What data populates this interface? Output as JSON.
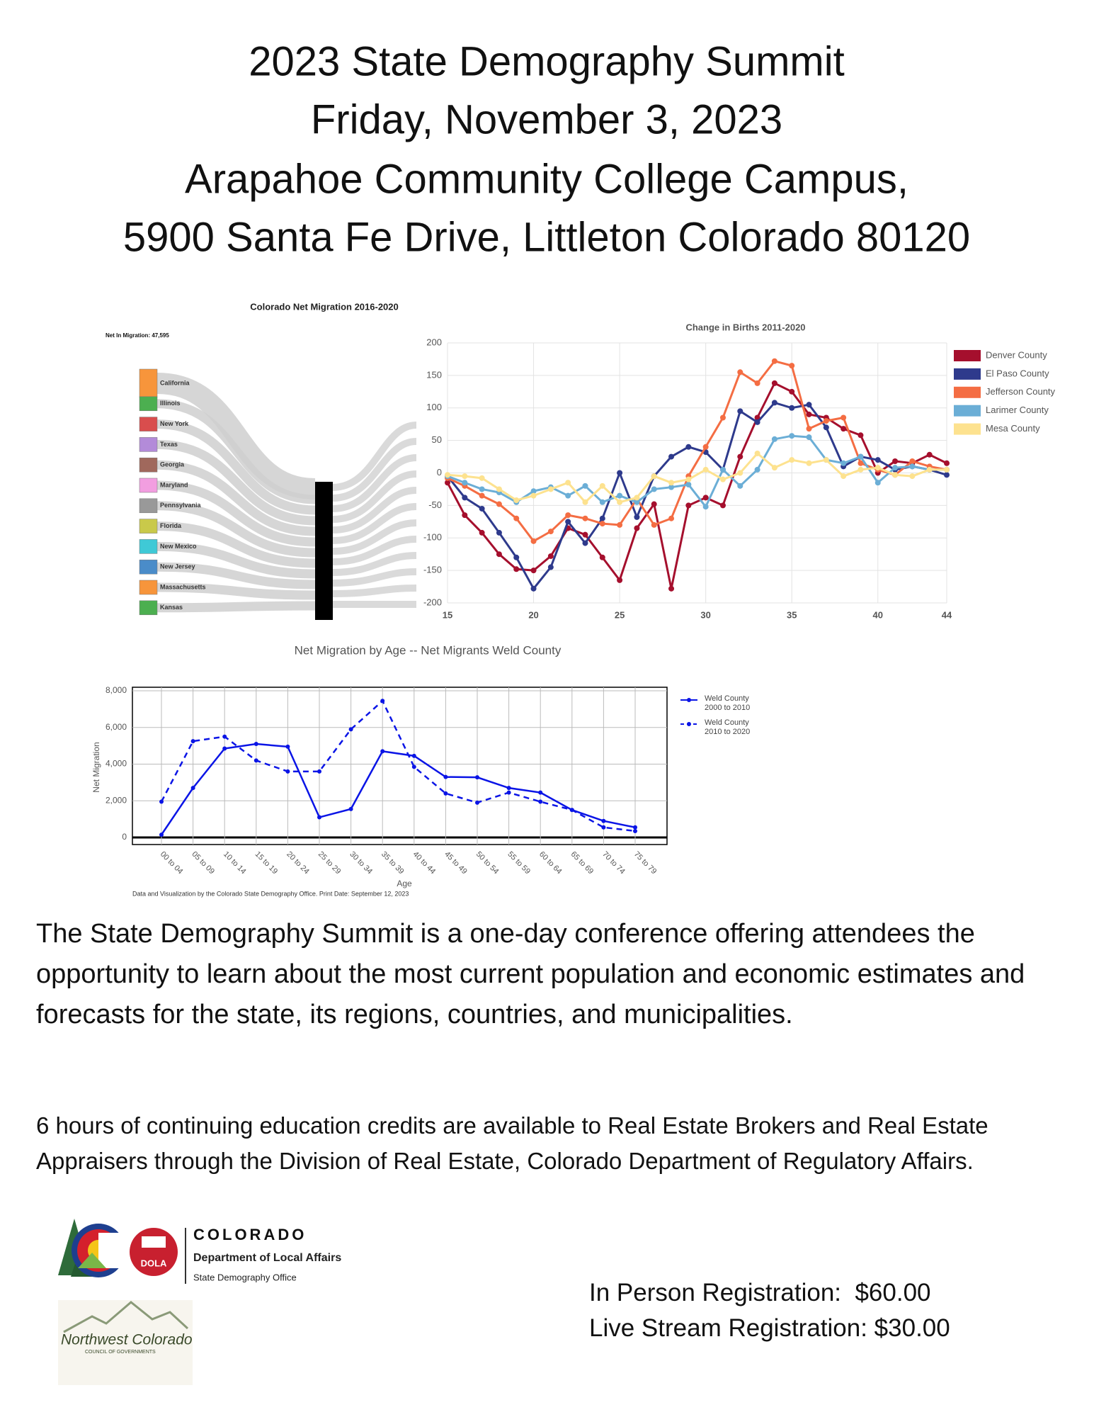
{
  "header": {
    "lines": [
      "2023 State Demography Summit",
      "Friday, November 3, 2023",
      "Arapahoe Community College Campus,",
      "5900 Santa Fe Drive, Littleton Colorado 80120"
    ]
  },
  "chart_data": [
    {
      "type": "sankey",
      "title": "Colorado Net Migration 2016-2020",
      "subtitle": "Net In Migration: 47,595",
      "nodes": [
        {
          "name": "California",
          "color": "#f7953b"
        },
        {
          "name": "Illinois",
          "color": "#4caf50"
        },
        {
          "name": "New York",
          "color": "#d94d4d"
        },
        {
          "name": "Texas",
          "color": "#b38bd9"
        },
        {
          "name": "Georgia",
          "color": "#a0685c"
        },
        {
          "name": "Maryland",
          "color": "#f29ee0"
        },
        {
          "name": "Pennsylvania",
          "color": "#999999"
        },
        {
          "name": "Florida",
          "color": "#c9c94a"
        },
        {
          "name": "New Mexico",
          "color": "#3fc9d6"
        },
        {
          "name": "New Jersey",
          "color": "#4a8cc9"
        },
        {
          "name": "Massachusetts",
          "color": "#f7953b"
        },
        {
          "name": "Kansas",
          "color": "#4caf50"
        }
      ]
    },
    {
      "type": "line",
      "title": "Change in Births 2011-2020",
      "grid": true,
      "legend": "right",
      "markers": true,
      "x": [
        15,
        16,
        17,
        18,
        19,
        20,
        21,
        22,
        23,
        24,
        25,
        26,
        27,
        28,
        29,
        30,
        31,
        32,
        33,
        34,
        35,
        36,
        37,
        38,
        39,
        40,
        41,
        42,
        43,
        44
      ],
      "xlim": [
        15,
        44
      ],
      "xticks": [
        15,
        20,
        25,
        30,
        35,
        40,
        44
      ],
      "ylim": [
        -200,
        200
      ],
      "yticks": [
        -200,
        -150,
        -100,
        -50,
        0,
        50,
        100,
        150,
        200
      ],
      "series": [
        {
          "name": "Denver County",
          "color": "#a50f2d",
          "values": [
            -15,
            -65,
            -92,
            -125,
            -148,
            -150,
            -128,
            -85,
            -95,
            -130,
            -165,
            -85,
            -48,
            -178,
            -50,
            -38,
            -50,
            25,
            85,
            138,
            125,
            90,
            85,
            68,
            58,
            0,
            18,
            15,
            28,
            15
          ]
        },
        {
          "name": "El Paso County",
          "color": "#2e3a8c",
          "values": [
            -5,
            -38,
            -55,
            -92,
            -130,
            -178,
            -145,
            -75,
            -108,
            -70,
            0,
            -68,
            -5,
            25,
            40,
            32,
            5,
            95,
            78,
            108,
            100,
            105,
            70,
            10,
            25,
            20,
            5,
            10,
            5,
            -3
          ]
        },
        {
          "name": "Jefferson County",
          "color": "#f46d43",
          "values": [
            -8,
            -20,
            -35,
            -48,
            -70,
            -105,
            -90,
            -65,
            -70,
            -78,
            -80,
            -40,
            -80,
            -70,
            -5,
            40,
            85,
            155,
            138,
            172,
            165,
            68,
            80,
            85,
            15,
            5,
            -3,
            18,
            10,
            5
          ]
        },
        {
          "name": "Larimer County",
          "color": "#6baed6",
          "values": [
            -5,
            -15,
            -25,
            -30,
            -45,
            -28,
            -22,
            -35,
            -20,
            -45,
            -35,
            -45,
            -25,
            -22,
            -18,
            -52,
            5,
            -20,
            5,
            52,
            57,
            55,
            20,
            15,
            25,
            -15,
            8,
            10,
            5,
            5
          ]
        },
        {
          "name": "Mesa County",
          "color": "#fde28f",
          "values": [
            -3,
            -5,
            -8,
            -25,
            -42,
            -35,
            -25,
            -15,
            -45,
            -20,
            -45,
            -38,
            -5,
            -15,
            -10,
            5,
            -10,
            0,
            30,
            8,
            20,
            15,
            20,
            -5,
            5,
            8,
            -3,
            -5,
            5,
            5
          ]
        }
      ]
    },
    {
      "type": "line",
      "title": "Net Migration by Age -- Net Migrants Weld County",
      "grid": true,
      "legend": "right",
      "markers": true,
      "x_label": "Age",
      "y_label": "Net Migration",
      "note": "Data and Visualization by the Colorado State Demography Office.  Print Date: September 12, 2023",
      "categories": [
        "00 to 04",
        "05 to 09",
        "10 to 14",
        "15 to 19",
        "20 to 24",
        "25 to 29",
        "30 to 34",
        "35 to 39",
        "40 to 44",
        "45 to 49",
        "50 to 54",
        "55 to 59",
        "60 to 64",
        "65 to 69",
        "70 to 74",
        "75 to 79"
      ],
      "ylim": [
        0,
        8000
      ],
      "yticks": [
        0,
        {
          "value": 2000,
          "label": "2,000"
        },
        {
          "value": 4000,
          "label": "4,000"
        },
        {
          "value": 6000,
          "label": "6,000"
        },
        {
          "value": 8000,
          "label": "8,000"
        }
      ],
      "series": [
        {
          "name": "Weld County 2000 to 2010",
          "color": "#0a14e6",
          "line_style": "solid",
          "values": [
            150,
            2700,
            4850,
            5100,
            4950,
            1100,
            1550,
            4700,
            4450,
            3300,
            3280,
            2700,
            2450,
            1500,
            900,
            550
          ]
        },
        {
          "name": "Weld County 2010 to 2020",
          "color": "#0a14e6",
          "line_style": "dashed",
          "values": [
            1950,
            5250,
            5500,
            4200,
            3600,
            3600,
            5900,
            7450,
            3850,
            2400,
            1900,
            2450,
            1950,
            1500,
            550,
            350
          ]
        }
      ]
    }
  ],
  "body": {
    "paragraphs": [
      "The State Demography Summit is a one-day conference offering attendees the opportunity to learn about the most current population and economic estimates and forecasts for the state, its regions, countries, and municipalities.",
      "6 hours of continuing education credits are available to Real Estate Brokers and Real Estate Appraisers through the Division of Real Estate, Colorado Department of Regulatory Affairs."
    ]
  },
  "logos": {
    "colorado": {
      "badge": "DOLA",
      "name": "COLORADO",
      "department": "Department of Local Affairs",
      "office": "State Demography Office"
    },
    "northwest": {
      "name": "Northwest Colorado",
      "subtitle": "COUNCIL OF GOVERNMENTS"
    }
  },
  "registration": [
    "In Person Registration:  $60.00",
    "Live Stream Registration: $30.00"
  ]
}
